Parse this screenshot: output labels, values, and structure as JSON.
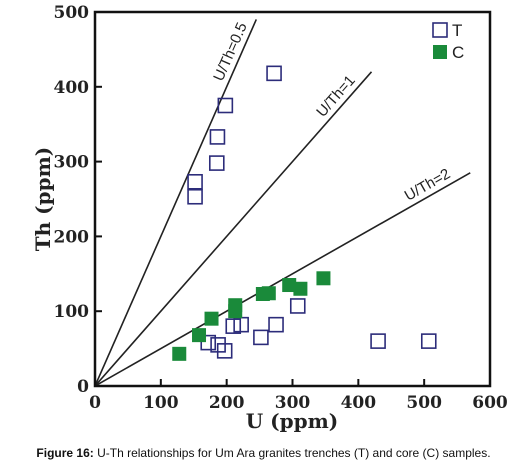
{
  "chart_data": {
    "type": "scatter",
    "title": "",
    "xlabel": "U (ppm)",
    "ylabel": "Th (ppm)",
    "xlim": [
      0,
      600
    ],
    "ylim": [
      0,
      500
    ],
    "xticks": [
      "0",
      "100",
      "200",
      "300",
      "400",
      "500",
      "600"
    ],
    "yticks": [
      "0",
      "100",
      "200",
      "300",
      "400",
      "500"
    ],
    "grid": false,
    "legend_position": "top-right",
    "series": [
      {
        "name": "T",
        "marker": "open-square",
        "color": "#2c2c7a",
        "points": [
          [
            152,
            273
          ],
          [
            152,
            253
          ],
          [
            198,
            375
          ],
          [
            186,
            333
          ],
          [
            185,
            298
          ],
          [
            272,
            418
          ],
          [
            172,
            58
          ],
          [
            187,
            55
          ],
          [
            197,
            47
          ],
          [
            210,
            80
          ],
          [
            222,
            82
          ],
          [
            252,
            65
          ],
          [
            275,
            82
          ],
          [
            308,
            107
          ],
          [
            430,
            60
          ],
          [
            507,
            60
          ]
        ]
      },
      {
        "name": "C",
        "marker": "filled-square",
        "color": "#1a8a3a",
        "points": [
          [
            128,
            43
          ],
          [
            158,
            68
          ],
          [
            177,
            90
          ],
          [
            213,
            108
          ],
          [
            213,
            100
          ],
          [
            255,
            123
          ],
          [
            264,
            124
          ],
          [
            295,
            135
          ],
          [
            312,
            130
          ],
          [
            347,
            144
          ]
        ]
      }
    ],
    "reference_lines": [
      {
        "label": "U/Th=0.5",
        "slope": 2,
        "x_end": 245
      },
      {
        "label": "U/Th=1",
        "slope": 1,
        "x_end": 420
      },
      {
        "label": "U/Th=2",
        "slope": 0.5,
        "x_end": 570
      }
    ]
  },
  "caption": {
    "label": "Figure 16:",
    "text": " U-Th relationships for Um Ara granites trenches (T) and core (C) samples."
  }
}
